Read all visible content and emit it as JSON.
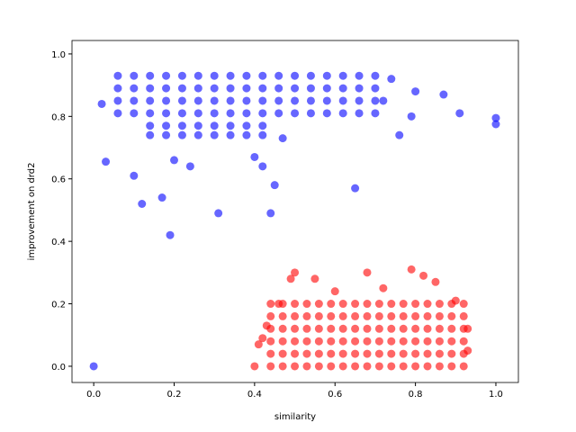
{
  "chart_data": {
    "type": "scatter",
    "x_label": "similarity",
    "y_label": "improvement on drd2",
    "xlim": [
      -0.054,
      1.056
    ],
    "ylim": [
      -0.052,
      1.043
    ],
    "xticks": [
      {
        "value": 0,
        "label": "0.0"
      },
      {
        "value": 0.2,
        "label": "0.2"
      },
      {
        "value": 0.4,
        "label": "0.4"
      },
      {
        "value": 0.6,
        "label": "0.6"
      },
      {
        "value": 0.8,
        "label": "0.8"
      },
      {
        "value": 1,
        "label": "1.0"
      }
    ],
    "yticks": [
      {
        "value": 0,
        "label": "0.0"
      },
      {
        "value": 0.2,
        "label": "0.2"
      },
      {
        "value": 0.4,
        "label": "0.4"
      },
      {
        "value": 0.6,
        "label": "0.6"
      },
      {
        "value": 0.8,
        "label": "0.8"
      },
      {
        "value": 1,
        "label": "1.0"
      }
    ],
    "opacity": 0.6,
    "series": [
      {
        "color": "#0000ff",
        "x": [
          0.06,
          0.1,
          0.14,
          0.18,
          0.22,
          0.26,
          0.3,
          0.34,
          0.38,
          0.42,
          0.46,
          0.5,
          0.54,
          0.58,
          0.62,
          0.66,
          0.7,
          0.06,
          0.1,
          0.14,
          0.18,
          0.22,
          0.26,
          0.3,
          0.34,
          0.38,
          0.42,
          0.46,
          0.5,
          0.54,
          0.58,
          0.62,
          0.66,
          0.7,
          0.06,
          0.1,
          0.14,
          0.18,
          0.22,
          0.26,
          0.3,
          0.34,
          0.38,
          0.42,
          0.46,
          0.5,
          0.54,
          0.58,
          0.62,
          0.66,
          0.7,
          0.06,
          0.1,
          0.14,
          0.18,
          0.22,
          0.26,
          0.3,
          0.34,
          0.38,
          0.42,
          0.46,
          0.5,
          0.54,
          0.58,
          0.62,
          0.66,
          0.7,
          0.14,
          0.18,
          0.22,
          0.26,
          0.3,
          0.34,
          0.38,
          0.42,
          0.14,
          0.18,
          0.22,
          0.26,
          0.3,
          0.34,
          0.38,
          0.42,
          0,
          0.03,
          0.1,
          0.12,
          0.17,
          0.19,
          0.31,
          0.44,
          0.45,
          0.65,
          1.0,
          1.0,
          0.91,
          0.87,
          0.79,
          0.76,
          0.8,
          0.02,
          0.74,
          0.72,
          0.4,
          0.42,
          0.47,
          0.2,
          0.24
        ],
        "values": [
          0.93,
          0.93,
          0.93,
          0.93,
          0.93,
          0.93,
          0.93,
          0.93,
          0.93,
          0.93,
          0.93,
          0.93,
          0.93,
          0.93,
          0.93,
          0.93,
          0.93,
          0.89,
          0.89,
          0.89,
          0.89,
          0.89,
          0.89,
          0.89,
          0.89,
          0.89,
          0.89,
          0.89,
          0.89,
          0.89,
          0.89,
          0.89,
          0.89,
          0.89,
          0.85,
          0.85,
          0.85,
          0.85,
          0.85,
          0.85,
          0.85,
          0.85,
          0.85,
          0.85,
          0.85,
          0.85,
          0.85,
          0.85,
          0.85,
          0.85,
          0.85,
          0.81,
          0.81,
          0.81,
          0.81,
          0.81,
          0.81,
          0.81,
          0.81,
          0.81,
          0.81,
          0.81,
          0.81,
          0.81,
          0.81,
          0.81,
          0.81,
          0.81,
          0.77,
          0.77,
          0.77,
          0.77,
          0.77,
          0.77,
          0.77,
          0.77,
          0.74,
          0.74,
          0.74,
          0.74,
          0.74,
          0.74,
          0.74,
          0.74,
          0,
          0.655,
          0.61,
          0.52,
          0.54,
          0.42,
          0.49,
          0.49,
          0.58,
          0.57,
          0.775,
          0.795,
          0.81,
          0.87,
          0.8,
          0.74,
          0.88,
          0.84,
          0.92,
          0.85,
          0.67,
          0.64,
          0.73,
          0.66,
          0.64
        ]
      },
      {
        "color": "#ff0000",
        "x": [
          0.44,
          0.47,
          0.5,
          0.53,
          0.56,
          0.59,
          0.62,
          0.65,
          0.68,
          0.71,
          0.74,
          0.77,
          0.8,
          0.83,
          0.86,
          0.89,
          0.92,
          0.44,
          0.47,
          0.5,
          0.53,
          0.56,
          0.59,
          0.62,
          0.65,
          0.68,
          0.71,
          0.74,
          0.77,
          0.8,
          0.83,
          0.86,
          0.89,
          0.92,
          0.44,
          0.47,
          0.5,
          0.53,
          0.56,
          0.59,
          0.62,
          0.65,
          0.68,
          0.71,
          0.74,
          0.77,
          0.8,
          0.83,
          0.86,
          0.89,
          0.92,
          0.44,
          0.47,
          0.5,
          0.53,
          0.56,
          0.59,
          0.62,
          0.65,
          0.68,
          0.71,
          0.74,
          0.77,
          0.8,
          0.83,
          0.86,
          0.89,
          0.92,
          0.44,
          0.47,
          0.5,
          0.53,
          0.56,
          0.59,
          0.62,
          0.65,
          0.68,
          0.71,
          0.74,
          0.77,
          0.8,
          0.83,
          0.86,
          0.89,
          0.92,
          0.44,
          0.47,
          0.5,
          0.53,
          0.56,
          0.59,
          0.62,
          0.65,
          0.68,
          0.71,
          0.74,
          0.77,
          0.8,
          0.83,
          0.86,
          0.89,
          0.92,
          0.4,
          0.41,
          0.42,
          0.43,
          0.46,
          0.49,
          0.5,
          0.55,
          0.68,
          0.79,
          0.82,
          0.85,
          0.9,
          0.93,
          0.93,
          0.6,
          0.72
        ],
        "values": [
          0,
          0,
          0,
          0,
          0,
          0,
          0,
          0,
          0,
          0,
          0,
          0,
          0,
          0,
          0,
          0,
          0,
          0.04,
          0.04,
          0.04,
          0.04,
          0.04,
          0.04,
          0.04,
          0.04,
          0.04,
          0.04,
          0.04,
          0.04,
          0.04,
          0.04,
          0.04,
          0.04,
          0.04,
          0.08,
          0.08,
          0.08,
          0.08,
          0.08,
          0.08,
          0.08,
          0.08,
          0.08,
          0.08,
          0.08,
          0.08,
          0.08,
          0.08,
          0.08,
          0.08,
          0.08,
          0.12,
          0.12,
          0.12,
          0.12,
          0.12,
          0.12,
          0.12,
          0.12,
          0.12,
          0.12,
          0.12,
          0.12,
          0.12,
          0.12,
          0.12,
          0.12,
          0.12,
          0.16,
          0.16,
          0.16,
          0.16,
          0.16,
          0.16,
          0.16,
          0.16,
          0.16,
          0.16,
          0.16,
          0.16,
          0.16,
          0.16,
          0.16,
          0.16,
          0.16,
          0.2,
          0.2,
          0.2,
          0.2,
          0.2,
          0.2,
          0.2,
          0.2,
          0.2,
          0.2,
          0.2,
          0.2,
          0.2,
          0.2,
          0.2,
          0.2,
          0.2,
          0,
          0.07,
          0.09,
          0.13,
          0.2,
          0.28,
          0.3,
          0.28,
          0.3,
          0.31,
          0.29,
          0.27,
          0.21,
          0.12,
          0.05,
          0.24,
          0.25
        ]
      }
    ]
  }
}
